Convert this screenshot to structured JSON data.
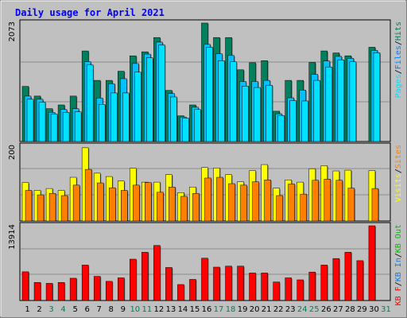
{
  "title": "Daily usage for April 2021",
  "colors": {
    "background": "#c0c0c0",
    "outer_border": "#7f7f7f",
    "title_text": "#0000ff",
    "grid": "#8c8c8c",
    "hits": "#00805c",
    "files": "#00c0ff",
    "pages": "#00e0ff",
    "visits": "#ffff00",
    "sites": "#ff8000",
    "kb_in": "#0080ff",
    "kb_out": "#00c000",
    "kb_f": "#ff0000",
    "weekend_label": "#00805c",
    "weekday_label": "#000000",
    "separator": "#000000"
  },
  "chart_data": [
    {
      "panel": "requests",
      "type": "bar",
      "ymax_label": "2073",
      "ymax": 2073,
      "legend": [
        {
          "text": "Pages",
          "color": "#00e0ff"
        },
        {
          "text": "/",
          "color": "#000000"
        },
        {
          "text": "Files",
          "color": "#0080ff"
        },
        {
          "text": "/",
          "color": "#000000"
        },
        {
          "text": "Hits",
          "color": "#00805c"
        }
      ],
      "categories": [
        "1",
        "2",
        "3",
        "4",
        "5",
        "6",
        "7",
        "8",
        "9",
        "10",
        "11",
        "12",
        "13",
        "14",
        "15",
        "16",
        "17",
        "18",
        "19",
        "20",
        "21",
        "22",
        "23",
        "24",
        "25",
        "26",
        "27",
        "28",
        "29",
        "30",
        "31"
      ],
      "series": [
        {
          "name": "Hits",
          "color": "#00805c",
          "values": [
            965,
            795,
            575,
            640,
            795,
            1585,
            1070,
            1070,
            1230,
            1500,
            1570,
            1820,
            895,
            450,
            640,
            2073,
            1820,
            1820,
            1255,
            1380,
            1415,
            530,
            1070,
            1070,
            1385,
            1585,
            1550,
            1500,
            0,
            1650,
            0
          ]
        },
        {
          "name": "Files",
          "color": "#00c0ff",
          "values": [
            795,
            740,
            510,
            560,
            575,
            1395,
            760,
            1010,
            1100,
            1365,
            1530,
            1740,
            840,
            430,
            600,
            1700,
            1535,
            1505,
            1050,
            1050,
            1070,
            485,
            765,
            900,
            1175,
            1410,
            1490,
            1455,
            0,
            1595,
            0
          ]
        },
        {
          "name": "Pages",
          "color": "#00e0ff",
          "values": [
            740,
            690,
            480,
            510,
            520,
            1340,
            650,
            850,
            850,
            1215,
            1465,
            1690,
            780,
            410,
            560,
            1650,
            1415,
            1395,
            970,
            945,
            985,
            455,
            715,
            710,
            1070,
            1305,
            1430,
            1395,
            0,
            1555,
            0
          ]
        }
      ]
    },
    {
      "panel": "visitors",
      "type": "bar",
      "ymax_label": "200",
      "ymax": 200,
      "legend": [
        {
          "text": "Visits",
          "color": "#ffff00"
        },
        {
          "text": "/",
          "color": "#000000"
        },
        {
          "text": "Sites",
          "color": "#ff8000"
        }
      ],
      "categories": [
        "1",
        "2",
        "3",
        "4",
        "5",
        "6",
        "7",
        "8",
        "9",
        "10",
        "11",
        "12",
        "13",
        "14",
        "15",
        "16",
        "17",
        "18",
        "19",
        "20",
        "21",
        "22",
        "23",
        "24",
        "25",
        "26",
        "27",
        "28",
        "29",
        "30",
        "31"
      ],
      "series": [
        {
          "name": "Visits",
          "color": "#ffff00",
          "values": [
            103,
            82,
            87,
            82,
            117,
            196,
            128,
            119,
            107,
            141,
            104,
            104,
            124,
            76,
            91,
            143,
            142,
            124,
            105,
            135,
            151,
            88,
            110,
            104,
            140,
            148,
            134,
            136,
            0,
            135,
            0
          ]
        },
        {
          "name": "Sites",
          "color": "#ff8000",
          "values": [
            82,
            70,
            74,
            68,
            96,
            138,
            102,
            89,
            82,
            96,
            103,
            77,
            91,
            66,
            74,
            115,
            117,
            100,
            96,
            105,
            110,
            68,
            99,
            72,
            109,
            112,
            109,
            88,
            0,
            87,
            0
          ]
        }
      ]
    },
    {
      "panel": "volume",
      "type": "bar",
      "ymax_label": "13914",
      "ymax": 13914,
      "legend": [
        {
          "text": "KB F",
          "color": "#ff0000"
        },
        {
          "text": "/",
          "color": "#000000"
        },
        {
          "text": "KB In",
          "color": "#0080ff"
        },
        {
          "text": "/",
          "color": "#000000"
        },
        {
          "text": "KB Out",
          "color": "#00c000"
        }
      ],
      "categories": [
        "1",
        "2",
        "3",
        "4",
        "5",
        "6",
        "7",
        "8",
        "9",
        "10",
        "11",
        "12",
        "13",
        "14",
        "15",
        "16",
        "17",
        "18",
        "19",
        "20",
        "21",
        "22",
        "23",
        "24",
        "25",
        "26",
        "27",
        "28",
        "29",
        "30",
        "31"
      ],
      "series": [
        {
          "name": "KB F",
          "color": "#ff0000",
          "values": [
            5350,
            3370,
            3200,
            3370,
            4150,
            6600,
            4500,
            3570,
            4220,
            7700,
            9000,
            10250,
            6150,
            2970,
            3930,
            7880,
            6220,
            6400,
            6400,
            5120,
            5120,
            3450,
            4220,
            3850,
            5300,
            6600,
            7820,
            9000,
            7420,
            13914,
            0
          ]
        }
      ]
    }
  ],
  "x_labels": [
    {
      "text": "1",
      "weekend": false
    },
    {
      "text": "2",
      "weekend": false
    },
    {
      "text": "3",
      "weekend": true
    },
    {
      "text": "4",
      "weekend": true
    },
    {
      "text": "5",
      "weekend": false
    },
    {
      "text": "6",
      "weekend": false
    },
    {
      "text": "7",
      "weekend": false
    },
    {
      "text": "8",
      "weekend": false
    },
    {
      "text": "9",
      "weekend": false
    },
    {
      "text": "10",
      "weekend": true
    },
    {
      "text": "11",
      "weekend": true
    },
    {
      "text": "12",
      "weekend": false
    },
    {
      "text": "13",
      "weekend": false
    },
    {
      "text": "14",
      "weekend": false
    },
    {
      "text": "15",
      "weekend": false
    },
    {
      "text": "16",
      "weekend": false
    },
    {
      "text": "17",
      "weekend": true
    },
    {
      "text": "18",
      "weekend": true
    },
    {
      "text": "19",
      "weekend": false
    },
    {
      "text": "20",
      "weekend": false
    },
    {
      "text": "21",
      "weekend": false
    },
    {
      "text": "22",
      "weekend": false
    },
    {
      "text": "23",
      "weekend": false
    },
    {
      "text": "24",
      "weekend": true
    },
    {
      "text": "25",
      "weekend": true
    },
    {
      "text": "26",
      "weekend": false
    },
    {
      "text": "27",
      "weekend": false
    },
    {
      "text": "28",
      "weekend": false
    },
    {
      "text": "29",
      "weekend": false
    },
    {
      "text": "30",
      "weekend": false
    },
    {
      "text": "31",
      "weekend": true
    }
  ]
}
